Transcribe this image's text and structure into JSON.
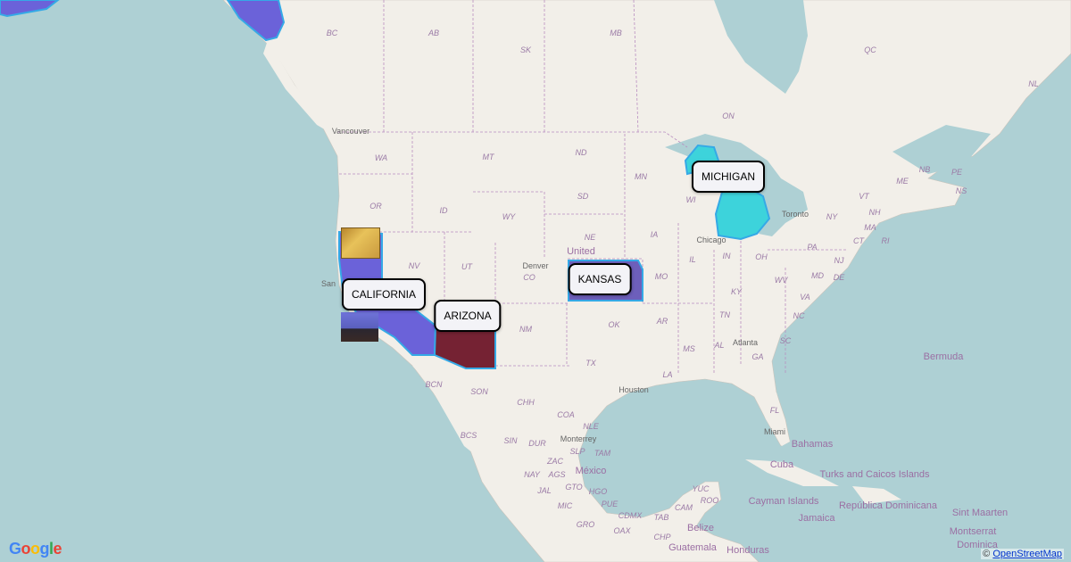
{
  "map": {
    "colors": {
      "ocean": "#aed0d4",
      "land": "#f2efe9",
      "border": "#b98ec0",
      "california": "#6b62d9",
      "arizona": "#752233",
      "kansas": "#6d5fbb",
      "michigan": "#3dd3db",
      "highlight_stroke": "#35a9e6"
    },
    "callouts": [
      {
        "label": "MICHIGAN"
      },
      {
        "label": "KANSAS"
      },
      {
        "label": "CALIFORNIA"
      },
      {
        "label": "ARIZONA"
      }
    ],
    "region_labels": [
      "BC",
      "AB",
      "SK",
      "MB",
      "QC",
      "ON",
      "NL",
      "WA",
      "MT",
      "ND",
      "MN",
      "OR",
      "ID",
      "WY",
      "SD",
      "WI",
      "NV",
      "UT",
      "CO",
      "NE",
      "IA",
      "IL",
      "IN",
      "OH",
      "PA",
      "NY",
      "VT",
      "NH",
      "MA",
      "CT",
      "RI",
      "NJ",
      "DE",
      "MD",
      "VA",
      "WV",
      "KY",
      "MO",
      "TN",
      "NC",
      "SC",
      "GA",
      "AL",
      "MS",
      "AR",
      "OK",
      "TX",
      "LA",
      "FL",
      "NM",
      "NB",
      "PE",
      "NS",
      "ME",
      "BCN",
      "SON",
      "CHH",
      "COA",
      "NLE",
      "TAM",
      "BCS",
      "SIN",
      "DUR",
      "ZAC",
      "GTO",
      "HGO",
      "MIC",
      "GRO",
      "OAX",
      "CHP",
      "TAB",
      "CAM",
      "YUC",
      "ROO",
      "PUE",
      "JAL",
      "NAY",
      "AGS",
      "SLP",
      "CDMX"
    ],
    "cities": [
      "Vancouver",
      "Toronto",
      "Chicago",
      "Denver",
      "Atlanta",
      "Houston",
      "Monterrey",
      "Miami",
      "San"
    ],
    "countries": [
      "United",
      "México",
      "Bahamas",
      "Cuba",
      "Cayman Islands",
      "Jamaica",
      "Turks and Caicos Islands",
      "República Dominicana",
      "Belize",
      "Guatemala",
      "Honduras",
      "Sint Maarten",
      "Montserrat",
      "Dominica",
      "Bermuda"
    ],
    "images": [
      "map-thumbnail",
      "speaker-photo"
    ]
  },
  "footer": {
    "logo": "Google",
    "copyright": "©",
    "attribution_link": "OpenStreetMap"
  }
}
